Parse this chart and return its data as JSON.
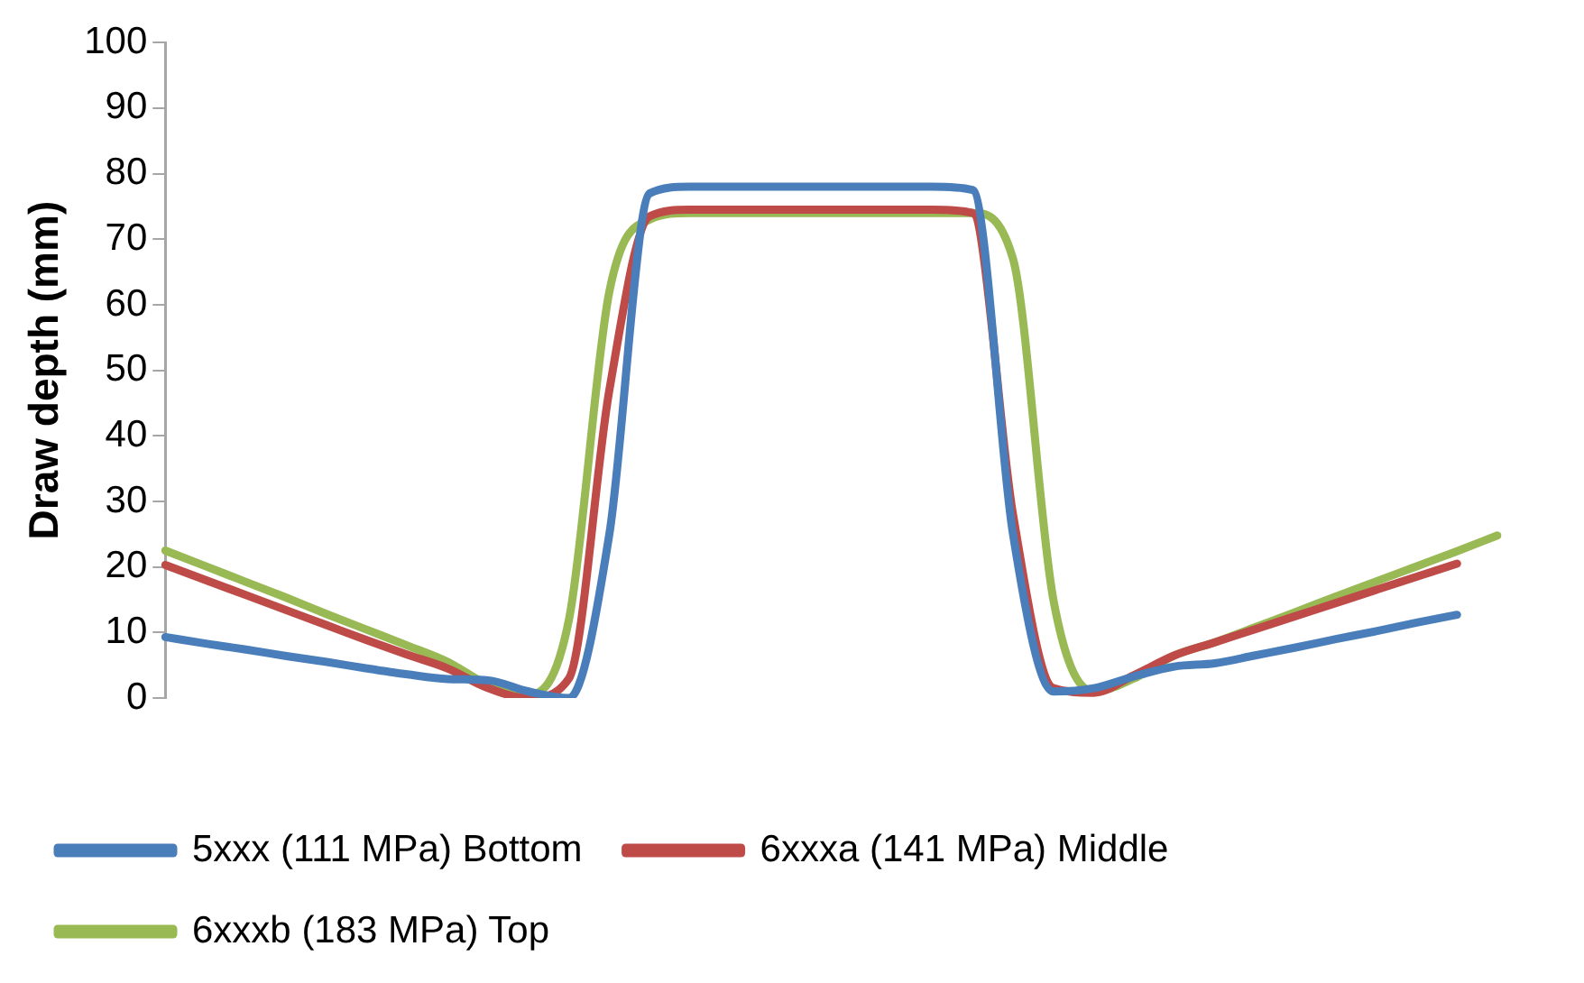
{
  "chart_data": {
    "type": "line",
    "ylabel": "Draw depth (mm)",
    "categories": [
      null,
      null,
      null,
      null,
      null,
      null,
      null,
      null,
      null,
      null,
      null,
      null,
      null,
      null,
      null,
      null,
      null,
      null,
      null,
      null,
      null,
      null,
      null,
      null,
      null,
      null,
      null,
      null,
      null,
      null,
      null,
      null,
      null,
      null
    ],
    "series": [
      {
        "name": "5xxx (111 MPa) Bottom",
        "color": "#4a7ebb",
        "values": [
          9.3,
          8.3,
          7.4,
          6.4,
          5.5,
          4.5,
          3.6,
          2.9,
          2.7,
          1,
          0,
          25,
          77,
          78,
          78,
          78,
          78,
          78,
          78,
          78,
          77.5,
          25,
          1,
          1.5,
          3.3,
          4.8,
          5.3,
          6.5,
          7.7,
          9,
          10.2,
          11.5,
          12.7,
          null
        ]
      },
      {
        "name": "6xxxa (141 MPa) Middle",
        "color": "#be4b48",
        "values": [
          20.3,
          18,
          15.7,
          13.4,
          11.1,
          8.8,
          6.6,
          4.5,
          1.5,
          0,
          3,
          47,
          73.5,
          74.5,
          74.5,
          74.5,
          74.5,
          74.5,
          74.5,
          74.5,
          74,
          28,
          1.5,
          0.8,
          3.5,
          6.5,
          8.5,
          10.5,
          12.5,
          14.5,
          16.5,
          18.5,
          20.5,
          null
        ]
      },
      {
        "name": "6xxxb (183 MPa) Top",
        "color": "#98b954",
        "values": [
          22.5,
          20.1,
          17.7,
          15.3,
          12.8,
          10.4,
          8,
          5.5,
          2,
          0.5,
          12,
          62,
          73,
          74,
          74,
          74,
          74,
          74,
          74,
          74,
          74,
          67,
          15,
          1,
          3,
          6.5,
          8.5,
          10.8,
          13.1,
          15.5,
          17.8,
          20.1,
          22.4,
          24.8
        ]
      }
    ],
    "ylim": [
      0,
      100
    ],
    "yticks": [
      0,
      10,
      20,
      30,
      40,
      50,
      60,
      70,
      80,
      90,
      100
    ],
    "tick_labels": "y",
    "grid": false,
    "legend": "bottom",
    "marker": "none",
    "line_style": "solid"
  }
}
